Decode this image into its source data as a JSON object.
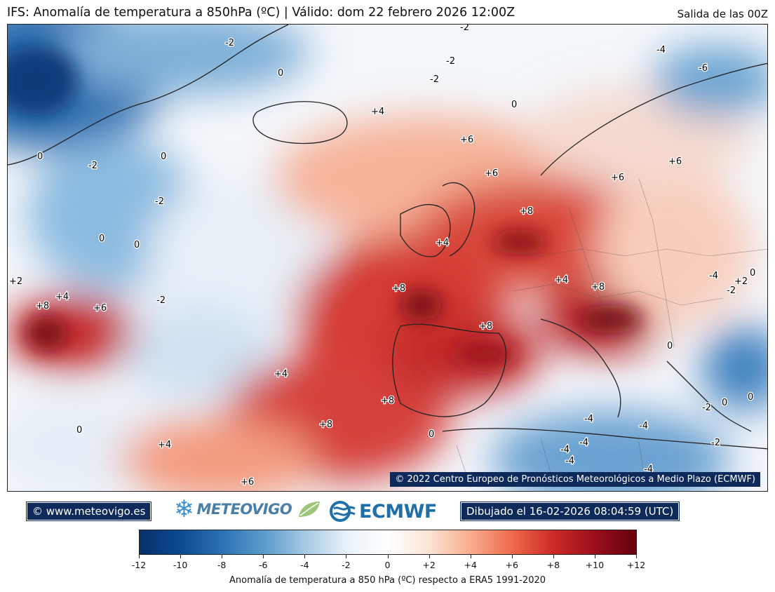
{
  "header": {
    "title": "IFS: Anomalía de temperatura a 850hPa  (ºC) | Válido: dom 22 febrero 2026 12:00Z",
    "run": "Salida de las 00Z"
  },
  "map": {
    "copyright": "© 2022 Centro Europeo de Pronósticos Meteorológicos a Medio Plazo (ECMWF)",
    "contour_labels": [
      "-2",
      "-2",
      "-2",
      "-2",
      "-6",
      "-4",
      "0",
      "0",
      "+4",
      "0",
      "+6",
      "+6",
      "+6",
      "+6",
      "-2",
      "0",
      "-2",
      "0",
      "0",
      "+8",
      "+4",
      "+2",
      "+8",
      "+4",
      "+6",
      "-2",
      "+8",
      "+4",
      "+8",
      "+8",
      "-4",
      "-2",
      "+2",
      "0",
      "+4",
      "+8",
      "+8",
      "0",
      "+4",
      "0",
      "-2",
      "0",
      "0",
      "-4",
      "-4",
      "-4",
      "-4",
      "-4",
      "-4",
      "-2",
      "+6",
      "0"
    ]
  },
  "footer": {
    "website": "© www.meteovigo.es",
    "meteovigo_logo": "METEOVIGO",
    "ecmwf_logo": "ECMWF",
    "drawn": "Dibujado el 16-02-2026 08:04:59 (UTC)"
  },
  "colorbar": {
    "ticks": [
      "-12",
      "-10",
      "-8",
      "-6",
      "-4",
      "-2",
      "0",
      "+2",
      "+4",
      "+6",
      "+8",
      "+10",
      "+12"
    ],
    "title": "Anomalía de temperatura a 850 hPa (ºC) respecto a ERA5 1991-2020",
    "range": [
      -12,
      12
    ],
    "colors": [
      "#08306b",
      "#0b4a91",
      "#2c72b4",
      "#5b9ccb",
      "#a5c9e3",
      "#eaf2fa",
      "#ffffff",
      "#fde4d6",
      "#f9ac8d",
      "#ef6a4c",
      "#cc2a26",
      "#9a0f1c",
      "#67000d"
    ]
  }
}
